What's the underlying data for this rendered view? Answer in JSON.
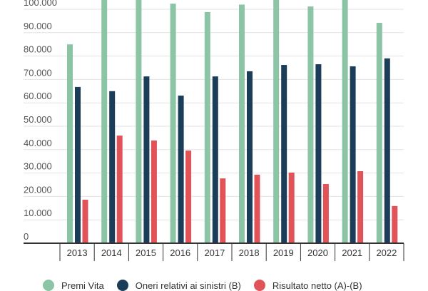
{
  "chart_data": {
    "type": "bar",
    "title": "",
    "xlabel": "",
    "ylabel": "",
    "ylim": [
      0,
      100000
    ],
    "grid": true,
    "legend_position": "bottom",
    "yticks": [
      "0",
      "10.000",
      "20.000",
      "30.000",
      "40.000",
      "50.000",
      "60.000",
      "70.000",
      "80.000",
      "90.000",
      "100.000"
    ],
    "categories": [
      "2013",
      "2014",
      "2015",
      "2016",
      "2017",
      "2018",
      "2019",
      "2020",
      "2021",
      "2022"
    ],
    "series": [
      {
        "name": "Premi Vita",
        "color": "#8cc5a5",
        "values": [
          85000,
          105000,
          105000,
          102400,
          98800,
          102000,
          105000,
          101200,
          105000,
          94200
        ]
      },
      {
        "name": "Oneri relativi ai sinistri (B)",
        "color": "#1b3d5a",
        "values": [
          66800,
          65000,
          71300,
          63100,
          71300,
          73500,
          76200,
          76500,
          75600,
          79000
        ]
      },
      {
        "name": "Risultato netto (A)-(B)",
        "color": "#e05358",
        "values": [
          18600,
          46000,
          43900,
          39600,
          27700,
          29300,
          30200,
          25300,
          30800,
          15900
        ]
      }
    ]
  }
}
